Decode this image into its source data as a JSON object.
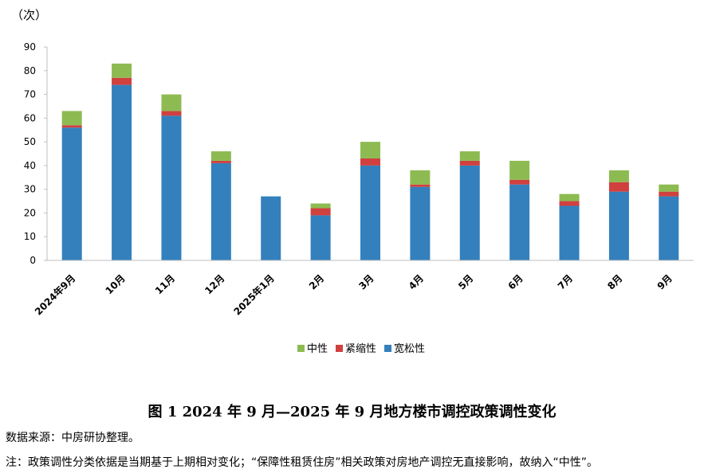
{
  "chart_data": {
    "type": "stacked-bar",
    "unit_label": "（次）",
    "categories": [
      "2024年9月",
      "10月",
      "11月",
      "12月",
      "2025年1月",
      "2月",
      "3月",
      "4月",
      "5月",
      "6月",
      "7月",
      "8月",
      "9月"
    ],
    "series": [
      {
        "name": "宽松性",
        "color": "#3380BD",
        "values": [
          56,
          74,
          61,
          41,
          27,
          19,
          40,
          31,
          40,
          32,
          23,
          29,
          27
        ]
      },
      {
        "name": "紧缩性",
        "color": "#D0403F",
        "values": [
          1,
          3,
          2,
          1,
          0,
          3,
          3,
          1,
          2,
          2,
          2,
          4,
          2
        ]
      },
      {
        "name": "中性",
        "color": "#8DBB52",
        "values": [
          6,
          6,
          7,
          4,
          0,
          2,
          7,
          6,
          4,
          8,
          3,
          5,
          3
        ]
      }
    ],
    "legend_order": [
      "中性",
      "紧缩性",
      "宽松性"
    ],
    "ylim": [
      0,
      90
    ],
    "yticks": [
      0,
      10,
      20,
      30,
      40,
      50,
      60,
      70,
      80,
      90
    ],
    "legend_position": "bottom-center"
  },
  "caption": "图 1 2024 年 9 月—2025 年 9 月地方楼市调控政策调性变化",
  "source": "数据来源：中房研协整理。",
  "footnote": "注：政策调性分类依据是当期基于上期相对变化；“保障性租赁住房”相关政策对房地产调控无直接影响，故纳入“中性”。"
}
